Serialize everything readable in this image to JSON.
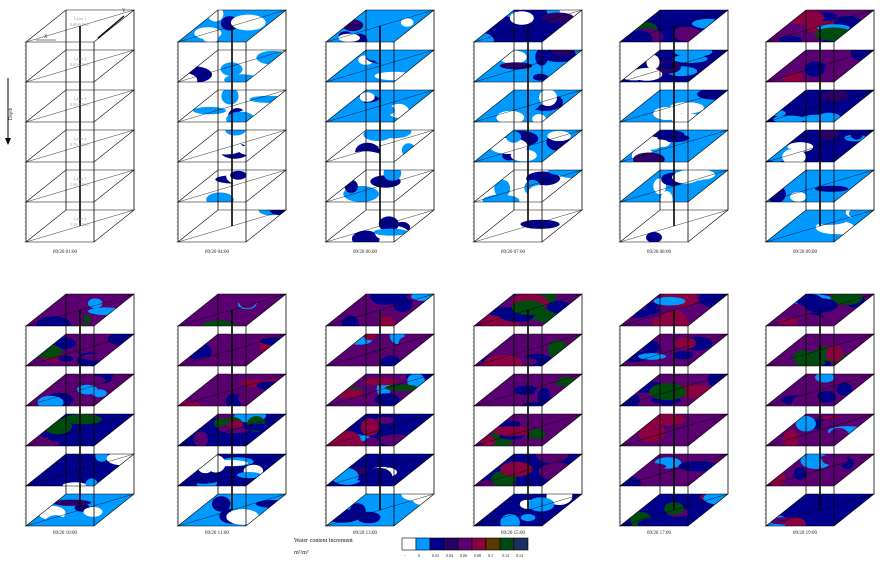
{
  "axis": {
    "x_label": "X",
    "y_label": "Y",
    "depth_label": "Depth"
  },
  "layers": [
    {
      "name": "Layer 1",
      "range": "0.00-0.25m"
    },
    {
      "name": "Layer 2",
      "range": "0.25-0.50m"
    },
    {
      "name": "Layer 3",
      "range": "0.50-0.75m"
    },
    {
      "name": "Layer 4",
      "range": "0.75-1.00m"
    },
    {
      "name": "Layer 5",
      "range": "1.00-1.25m"
    },
    {
      "name": "Layer 6",
      "range": "1.25-1.50m"
    }
  ],
  "panels": [
    {
      "label": "09/20 01:00",
      "intensity": 0
    },
    {
      "label": "09/20 04:00",
      "intensity": 1
    },
    {
      "label": "09/20 06:00",
      "intensity": 2
    },
    {
      "label": "09/20 07:00",
      "intensity": 3
    },
    {
      "label": "09/20 08:00",
      "intensity": 4
    },
    {
      "label": "09/20 09:00",
      "intensity": 5
    },
    {
      "label": "09/20 10:00",
      "intensity": 6
    },
    {
      "label": "09/20 11:00",
      "intensity": 6
    },
    {
      "label": "09/20 13:00",
      "intensity": 6
    },
    {
      "label": "09/20 15:00",
      "intensity": 7
    },
    {
      "label": "09/20 17:00",
      "intensity": 8
    },
    {
      "label": "09/20 19:00",
      "intensity": 8
    }
  ],
  "legend": {
    "title": "Water content increment",
    "unit": "m³/m³",
    "ticks": [
      "-",
      "0",
      "0.02",
      "0.04",
      "0.06",
      "0.08",
      "0.1",
      "0.12",
      "0.14"
    ],
    "colors": [
      "#ffffff",
      "#0099ff",
      "#00008a",
      "#2a0068",
      "#5a0070",
      "#8a0040",
      "#5a3a00",
      "#004a10",
      "#1a3060"
    ]
  }
}
